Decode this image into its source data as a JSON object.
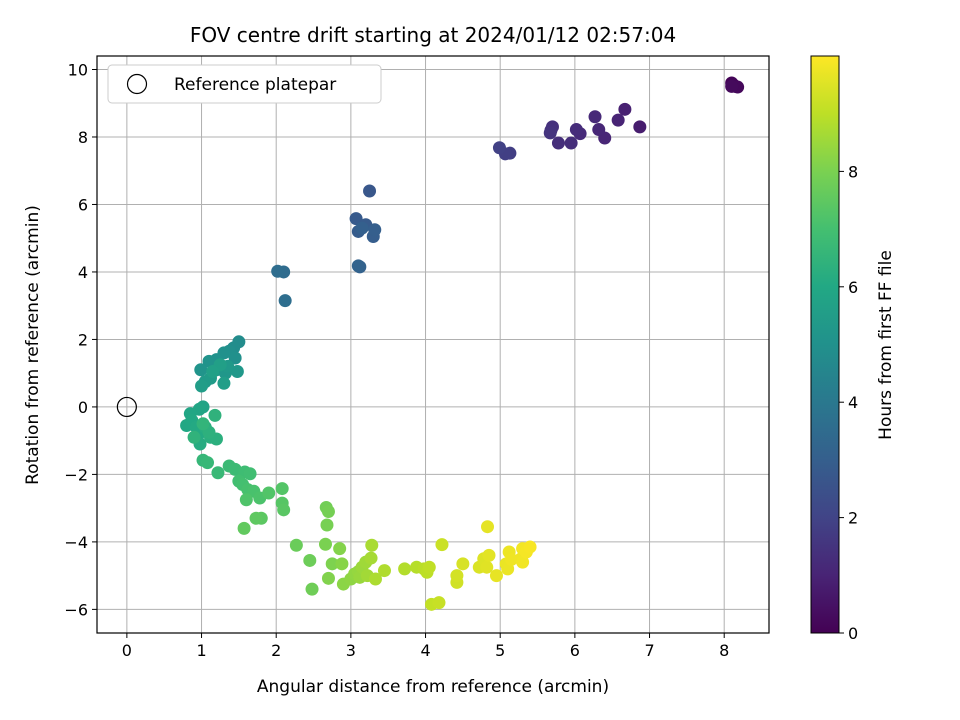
{
  "chart_data": {
    "type": "scatter",
    "title": "FOV centre drift starting at 2024/01/12 02:57:04",
    "xlabel": "Angular distance from reference (arcmin)",
    "ylabel": "Rotation from reference (arcmin)",
    "colorbar_label": "Hours from first FF file",
    "xlim": [
      -0.4,
      8.6
    ],
    "ylim": [
      -6.7,
      10.4
    ],
    "x_ticks": [
      0,
      1,
      2,
      3,
      4,
      5,
      6,
      7,
      8
    ],
    "y_ticks": [
      -6,
      -4,
      -2,
      0,
      2,
      4,
      6,
      8,
      10
    ],
    "colorbar_ticks": [
      0,
      2,
      4,
      6,
      8
    ],
    "colorbar_range": [
      0,
      10
    ],
    "colormap": "viridis",
    "grid": true,
    "legend": {
      "placement": "top-left",
      "entries": [
        "Reference platepar"
      ]
    },
    "reference_point": {
      "x": 0,
      "y": 0
    },
    "points": [
      [
        8.1,
        9.6,
        0.05
      ],
      [
        8.15,
        9.5,
        0.1
      ],
      [
        8.12,
        9.55,
        0.15
      ],
      [
        8.18,
        9.48,
        0.2
      ],
      [
        8.1,
        9.5,
        0.25
      ],
      [
        6.87,
        8.3,
        0.8
      ],
      [
        6.67,
        8.82,
        0.9
      ],
      [
        6.58,
        8.5,
        1.0
      ],
      [
        6.4,
        7.97,
        1.05
      ],
      [
        6.32,
        8.22,
        1.1
      ],
      [
        6.27,
        8.6,
        1.15
      ],
      [
        6.07,
        8.1,
        1.2
      ],
      [
        6.02,
        8.22,
        1.25
      ],
      [
        5.95,
        7.82,
        1.3
      ],
      [
        5.78,
        7.82,
        1.35
      ],
      [
        5.7,
        8.3,
        1.4
      ],
      [
        5.68,
        8.2,
        1.45
      ],
      [
        5.67,
        8.12,
        1.5
      ],
      [
        5.13,
        7.52,
        1.8
      ],
      [
        5.07,
        7.5,
        1.85
      ],
      [
        4.99,
        7.68,
        1.9
      ],
      [
        3.25,
        6.4,
        2.7
      ],
      [
        3.07,
        5.58,
        2.8
      ],
      [
        3.2,
        5.4,
        2.85
      ],
      [
        3.1,
        5.2,
        2.9
      ],
      [
        3.3,
        5.05,
        2.95
      ],
      [
        3.32,
        5.25,
        3.0
      ],
      [
        3.15,
        5.3,
        3.05
      ],
      [
        3.12,
        4.15,
        3.1
      ],
      [
        3.1,
        4.18,
        3.15
      ],
      [
        2.1,
        4.0,
        3.5
      ],
      [
        2.02,
        4.02,
        3.55
      ],
      [
        2.12,
        3.15,
        3.6
      ],
      [
        1.5,
        1.93,
        4.8
      ],
      [
        1.43,
        1.75,
        4.85
      ],
      [
        1.37,
        1.65,
        4.9
      ],
      [
        1.45,
        1.45,
        4.95
      ],
      [
        1.3,
        1.6,
        5.0
      ],
      [
        1.2,
        1.4,
        5.05
      ],
      [
        1.1,
        1.35,
        5.1
      ],
      [
        0.99,
        1.1,
        5.15
      ],
      [
        1.2,
        1.1,
        5.2
      ],
      [
        1.32,
        1.0,
        5.25
      ],
      [
        1.48,
        1.05,
        5.3
      ],
      [
        1.35,
        1.2,
        5.35
      ],
      [
        1.05,
        0.75,
        5.4
      ],
      [
        1.12,
        0.85,
        5.45
      ],
      [
        1.0,
        0.62,
        5.5
      ],
      [
        1.3,
        0.7,
        5.55
      ],
      [
        1.25,
        1.25,
        5.6
      ],
      [
        1.15,
        1.05,
        5.65
      ],
      [
        1.02,
        0.0,
        5.8
      ],
      [
        0.97,
        -0.07,
        5.85
      ],
      [
        0.85,
        -0.2,
        5.9
      ],
      [
        0.8,
        -0.55,
        5.95
      ],
      [
        0.87,
        -0.4,
        6.0
      ],
      [
        0.93,
        -0.6,
        6.05
      ],
      [
        0.95,
        -0.85,
        6.1
      ],
      [
        0.98,
        -1.1,
        6.15
      ],
      [
        1.05,
        -0.6,
        6.2
      ],
      [
        1.12,
        -0.9,
        6.25
      ],
      [
        1.2,
        -0.95,
        6.3
      ],
      [
        1.1,
        -0.75,
        6.35
      ],
      [
        1.18,
        -0.25,
        6.4
      ],
      [
        0.9,
        -0.9,
        6.45
      ],
      [
        1.02,
        -0.5,
        6.5
      ],
      [
        1.02,
        -1.58,
        6.6
      ],
      [
        1.08,
        -1.65,
        6.65
      ],
      [
        1.22,
        -1.95,
        6.7
      ],
      [
        1.37,
        -1.75,
        6.75
      ],
      [
        1.45,
        -1.85,
        6.8
      ],
      [
        1.58,
        -1.93,
        6.85
      ],
      [
        1.65,
        -1.98,
        6.9
      ],
      [
        1.5,
        -2.2,
        6.95
      ],
      [
        1.55,
        -2.3,
        7.0
      ],
      [
        1.62,
        -2.45,
        7.05
      ],
      [
        1.7,
        -2.5,
        7.1
      ],
      [
        1.78,
        -2.7,
        7.15
      ],
      [
        1.6,
        -2.75,
        7.2
      ],
      [
        1.9,
        -2.55,
        7.25
      ],
      [
        2.08,
        -2.42,
        7.3
      ],
      [
        2.08,
        -2.85,
        7.35
      ],
      [
        2.1,
        -3.05,
        7.4
      ],
      [
        1.8,
        -3.3,
        7.45
      ],
      [
        1.73,
        -3.3,
        7.5
      ],
      [
        1.57,
        -3.6,
        7.55
      ],
      [
        2.27,
        -4.1,
        7.7
      ],
      [
        2.45,
        -4.55,
        7.75
      ],
      [
        2.48,
        -5.4,
        7.8
      ],
      [
        2.67,
        -2.98,
        7.85
      ],
      [
        2.7,
        -3.1,
        7.9
      ],
      [
        2.68,
        -3.5,
        7.95
      ],
      [
        2.66,
        -4.07,
        8.0
      ],
      [
        2.75,
        -4.65,
        8.05
      ],
      [
        2.7,
        -5.08,
        8.1
      ],
      [
        2.85,
        -4.2,
        8.15
      ],
      [
        2.88,
        -4.65,
        8.2
      ],
      [
        2.9,
        -5.25,
        8.25
      ],
      [
        3.0,
        -5.1,
        8.3
      ],
      [
        3.05,
        -4.95,
        8.35
      ],
      [
        3.1,
        -4.88,
        8.4
      ],
      [
        3.12,
        -5.05,
        8.45
      ],
      [
        3.15,
        -4.75,
        8.5
      ],
      [
        3.2,
        -4.6,
        8.55
      ],
      [
        3.22,
        -5.0,
        8.6
      ],
      [
        3.27,
        -4.48,
        8.65
      ],
      [
        3.28,
        -4.1,
        8.7
      ],
      [
        3.33,
        -5.1,
        8.75
      ],
      [
        3.45,
        -4.85,
        8.8
      ],
      [
        3.72,
        -4.8,
        8.85
      ],
      [
        3.88,
        -4.75,
        8.9
      ],
      [
        3.98,
        -4.8,
        8.95
      ],
      [
        4.02,
        -4.9,
        9.0
      ],
      [
        4.05,
        -4.75,
        9.05
      ],
      [
        4.08,
        -5.85,
        9.1
      ],
      [
        4.18,
        -5.8,
        9.15
      ],
      [
        4.22,
        -4.08,
        9.2
      ],
      [
        4.42,
        -5.2,
        9.3
      ],
      [
        4.42,
        -5.0,
        9.35
      ],
      [
        4.5,
        -4.65,
        9.4
      ],
      [
        4.72,
        -4.75,
        9.45
      ],
      [
        4.78,
        -4.5,
        9.5
      ],
      [
        4.82,
        -4.75,
        9.55
      ],
      [
        4.85,
        -4.4,
        9.6
      ],
      [
        4.83,
        -3.55,
        9.62
      ],
      [
        4.95,
        -5.0,
        9.65
      ],
      [
        5.08,
        -4.65,
        9.7
      ],
      [
        5.1,
        -4.8,
        9.72
      ],
      [
        5.12,
        -4.3,
        9.75
      ],
      [
        5.15,
        -4.52,
        9.78
      ],
      [
        5.28,
        -4.5,
        9.8
      ],
      [
        5.3,
        -4.6,
        9.82
      ],
      [
        5.3,
        -4.2,
        9.85
      ],
      [
        5.35,
        -4.3,
        9.88
      ],
      [
        5.4,
        -4.15,
        9.9
      ]
    ]
  }
}
